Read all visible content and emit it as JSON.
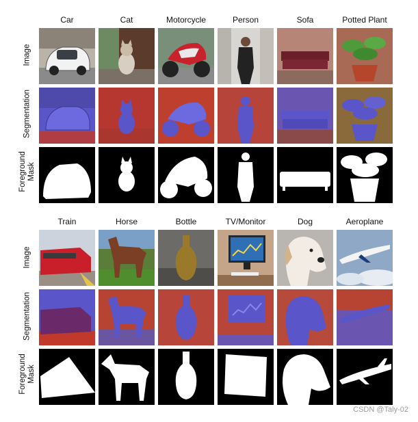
{
  "blocks": [
    {
      "columns": [
        "Car",
        "Cat",
        "Motorcycle",
        "Person",
        "Sofa",
        "Potted Plant"
      ],
      "rows": [
        "Image",
        "Segmentation",
        "Foreground Mask"
      ]
    },
    {
      "columns": [
        "Train",
        "Horse",
        "Bottle",
        "TV/Monitor",
        "Dog",
        "Aeroplane"
      ],
      "rows": [
        "Image",
        "Segmentation",
        "Foreground Mask"
      ]
    }
  ],
  "row_label_lines": {
    "image": [
      "Image"
    ],
    "segmentation": [
      "Segmentation"
    ],
    "mask": [
      "Foreground",
      "Mask"
    ]
  },
  "colors": {
    "segmentation_foreground": "#5a55c8",
    "segmentation_background": "#c0392b",
    "mask_background": "#000000",
    "mask_foreground": "#ffffff"
  },
  "watermark": "CSDN @Taly-02"
}
